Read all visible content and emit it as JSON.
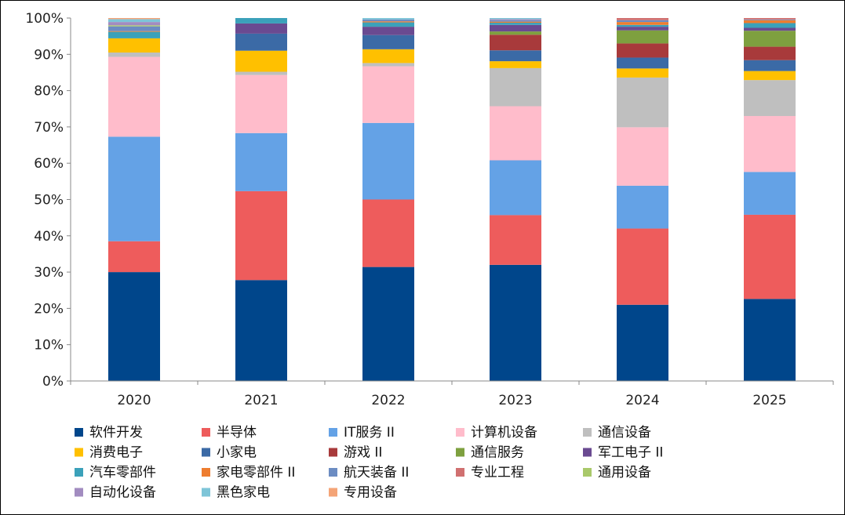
{
  "chart_data": {
    "type": "bar",
    "stacked": true,
    "percent": true,
    "title": "",
    "xlabel": "",
    "ylabel": "",
    "ylim": [
      0,
      100
    ],
    "yticks": [
      "0%",
      "10%",
      "20%",
      "30%",
      "40%",
      "50%",
      "60%",
      "70%",
      "80%",
      "90%",
      "100%"
    ],
    "grid": false,
    "legend_position": "bottom",
    "categories": [
      "2020",
      "2021",
      "2022",
      "2023",
      "2024",
      "2025"
    ],
    "series": [
      {
        "name": "软件开发",
        "color": "#00468b",
        "values": [
          30.0,
          27.8,
          31.4,
          32.0,
          21.0,
          22.6
        ]
      },
      {
        "name": "半导体",
        "color": "#ee5c5c",
        "values": [
          8.5,
          24.5,
          18.6,
          13.7,
          21.0,
          23.2
        ]
      },
      {
        "name": "IT服务 II",
        "color": "#64a2e6",
        "values": [
          28.8,
          16.0,
          21.1,
          15.1,
          11.8,
          11.8
        ]
      },
      {
        "name": "计算机设备",
        "color": "#ffbccb",
        "values": [
          22.0,
          16.0,
          15.6,
          14.9,
          16.1,
          15.4
        ]
      },
      {
        "name": "通信设备",
        "color": "#bfbfbf",
        "values": [
          1.2,
          0.9,
          0.9,
          10.5,
          13.7,
          9.9
        ]
      },
      {
        "name": "消费电子",
        "color": "#ffc000",
        "values": [
          3.9,
          5.8,
          3.8,
          1.9,
          2.5,
          2.5
        ]
      },
      {
        "name": "小家电",
        "color": "#3b6aa6",
        "values": [
          0,
          4.7,
          3.9,
          3.0,
          3.0,
          3.0
        ]
      },
      {
        "name": "游戏 II",
        "color": "#a83a3b",
        "values": [
          0,
          0,
          0,
          4.3,
          3.9,
          3.7
        ]
      },
      {
        "name": "通信服务",
        "color": "#7ea03f",
        "values": [
          0,
          0,
          0,
          0.9,
          3.6,
          4.4
        ]
      },
      {
        "name": "军工电子 II",
        "color": "#6a4a91",
        "values": [
          0,
          2.8,
          2.3,
          1.8,
          1.0,
          0.8
        ]
      },
      {
        "name": "汽车零部件",
        "color": "#3ba1ba",
        "values": [
          1.8,
          1.5,
          1.2,
          0.6,
          0.5,
          1.3
        ]
      },
      {
        "name": "家电零部件 II",
        "color": "#ee7d2f",
        "values": [
          0.2,
          0,
          0.3,
          0.3,
          0.8,
          0.8
        ]
      },
      {
        "name": "航天装备 II",
        "color": "#6c8cc2",
        "values": [
          1.3,
          0,
          0.5,
          0.4,
          0.5,
          0.2
        ]
      },
      {
        "name": "专业工程",
        "color": "#d07070",
        "values": [
          0,
          0,
          0,
          0,
          0.6,
          0.4
        ]
      },
      {
        "name": "通用设备",
        "color": "#a9c96a",
        "values": [
          0.3,
          0,
          0,
          0,
          0,
          0
        ]
      },
      {
        "name": "自动化设备",
        "color": "#a28cc0",
        "values": [
          0.9,
          0,
          0,
          0.3,
          0,
          0
        ]
      },
      {
        "name": "黑色家电",
        "color": "#7ec5d8",
        "values": [
          0.8,
          0,
          0.4,
          0.3,
          0,
          0
        ]
      },
      {
        "name": "专用设备",
        "color": "#f4a477",
        "values": [
          0.3,
          0,
          0,
          0,
          0,
          0
        ]
      }
    ]
  }
}
